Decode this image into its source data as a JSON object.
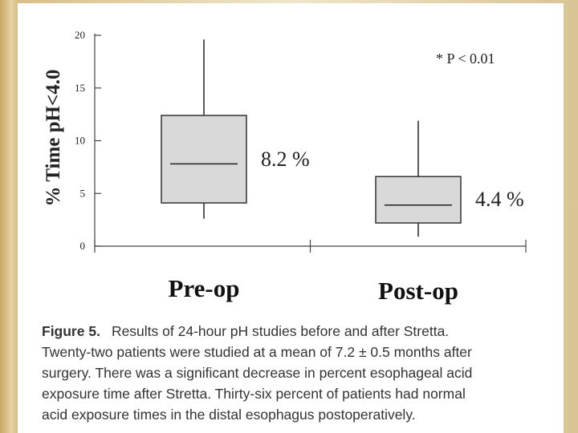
{
  "chart_data": {
    "type": "box",
    "ylabel": "% Time pH<4.0",
    "annotation": "* P < 0.01",
    "categories": [
      "Pre-op",
      "Post-op"
    ],
    "low": [
      2.6,
      0.9
    ],
    "q1": [
      4.1,
      2.2
    ],
    "median": [
      7.8,
      3.9
    ],
    "q3": [
      12.4,
      6.6
    ],
    "high": [
      19.6,
      11.9
    ],
    "means": [
      8.2,
      4.4
    ],
    "mean_labels": [
      "8.2 %",
      "4.4 %"
    ],
    "color": "#d9d9d9",
    "ylim": [
      0,
      20
    ],
    "yticks": [
      0,
      5,
      10,
      15,
      20
    ]
  },
  "caption": {
    "label": "Figure 5.",
    "lines": [
      "Results of 24-hour pH studies before and after Stretta.",
      "Twenty-two patients were studied at a mean of 7.2 ± 0.5 months after",
      "surgery. There was a significant decrease in percent esophageal acid",
      "exposure time after Stretta. Thirty-six percent of patients had normal",
      "acid exposure times in the distal esophagus postoperatively."
    ]
  }
}
